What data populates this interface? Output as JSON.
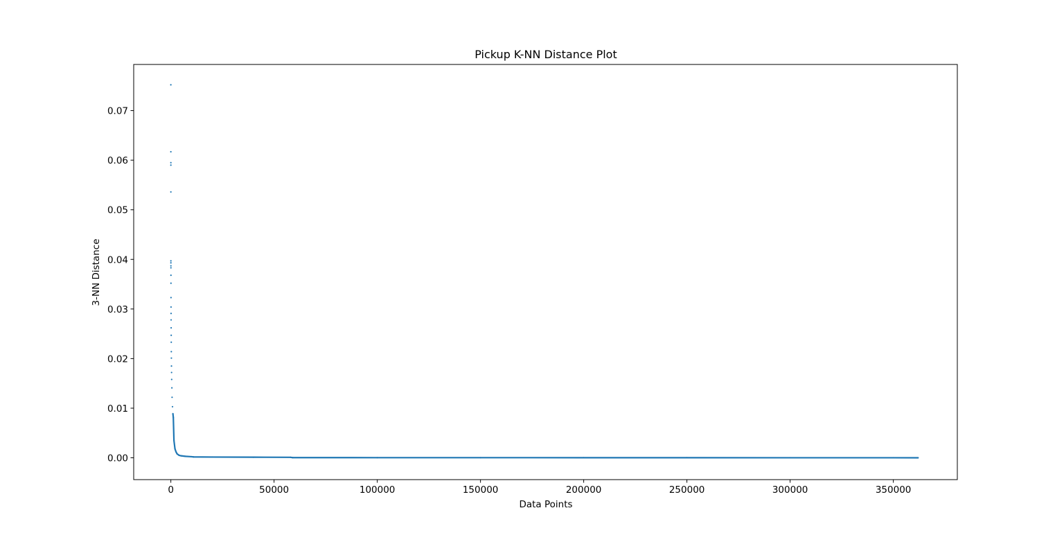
{
  "chart_data": {
    "type": "scatter",
    "title": "Pickup K-NN Distance Plot",
    "xlabel": "Data Points",
    "ylabel": "3-NN Distance",
    "xlim": [
      -18000,
      381000
    ],
    "ylim": [
      -0.0044,
      0.0793
    ],
    "x_ticks": [
      0,
      50000,
      100000,
      150000,
      200000,
      250000,
      300000,
      350000
    ],
    "x_tick_labels": [
      "0",
      "50000",
      "100000",
      "150000",
      "200000",
      "250000",
      "300000",
      "350000"
    ],
    "y_ticks": [
      0.0,
      0.01,
      0.02,
      0.03,
      0.04,
      0.05,
      0.06,
      0.07
    ],
    "y_tick_labels": [
      "0.00",
      "0.01",
      "0.02",
      "0.03",
      "0.04",
      "0.05",
      "0.06",
      "0.07"
    ],
    "grid": false,
    "legend": "none",
    "marker_color": "#1f77b4",
    "series": [
      {
        "x": [
          0,
          5,
          10,
          12,
          14,
          20,
          25,
          30,
          40,
          50,
          60,
          75,
          90,
          110,
          130,
          150,
          175,
          200,
          230,
          260,
          300,
          350,
          400,
          500,
          600,
          800,
          1000,
          1200,
          1500,
          2000,
          2500,
          3000,
          4000,
          5000,
          7000,
          10000,
          11000,
          20000,
          40000,
          58000,
          59000,
          100000,
          150000,
          200000,
          250000,
          300000,
          350000,
          362000
        ],
        "y": [
          0.0752,
          0.0617,
          0.0595,
          0.059,
          0.0536,
          0.0397,
          0.0393,
          0.0387,
          0.0383,
          0.0368,
          0.0352,
          0.0323,
          0.0304,
          0.0291,
          0.0278,
          0.0262,
          0.0247,
          0.0233,
          0.0214,
          0.0201,
          0.0185,
          0.0172,
          0.0158,
          0.0141,
          0.0122,
          0.0103,
          0.0089,
          0.0081,
          0.0035,
          0.0018,
          0.0012,
          0.0008,
          0.0005,
          0.0004,
          0.0003,
          0.00022,
          0.00018,
          0.00015,
          0.00012,
          0.0001,
          4e-05,
          3e-05,
          3e-05,
          2e-05,
          2e-05,
          1e-05,
          1e-05,
          0.0
        ]
      }
    ]
  }
}
